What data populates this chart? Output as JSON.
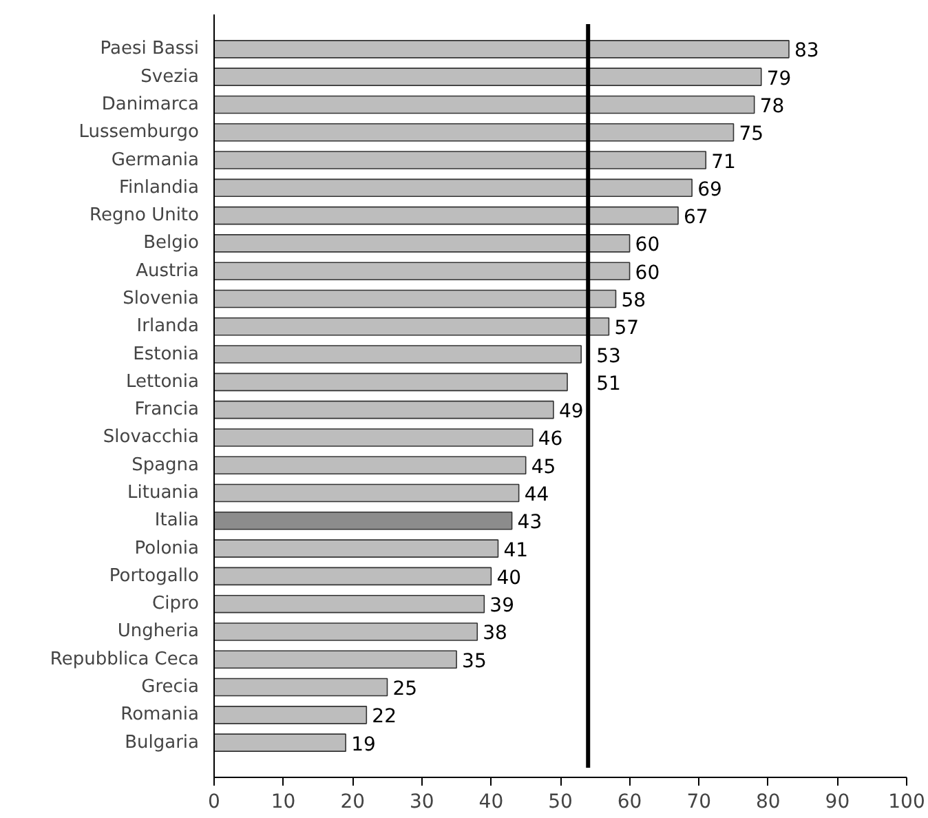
{
  "chart_data": {
    "type": "bar",
    "orientation": "horizontal",
    "categories": [
      "Paesi Bassi",
      "Svezia",
      "Danimarca",
      "Lussemburgo",
      "Germania",
      "Finlandia",
      "Regno Unito",
      "Belgio",
      "Austria",
      "Slovenia",
      "Irlanda",
      "Estonia",
      "Lettonia",
      "Francia",
      "Slovacchia",
      "Spagna",
      "Lituania",
      "Italia",
      "Polonia",
      "Portogallo",
      "Cipro",
      "Ungheria",
      "Repubblica Ceca",
      "Grecia",
      "Romania",
      "Bulgaria"
    ],
    "values": [
      83,
      79,
      78,
      75,
      71,
      69,
      67,
      60,
      60,
      58,
      57,
      53,
      51,
      49,
      46,
      45,
      44,
      43,
      41,
      40,
      39,
      38,
      35,
      25,
      22,
      19
    ],
    "colors": [
      "#bdbdbd",
      "#bdbdbd",
      "#bdbdbd",
      "#bdbdbd",
      "#bdbdbd",
      "#bdbdbd",
      "#bdbdbd",
      "#bdbdbd",
      "#bdbdbd",
      "#bdbdbd",
      "#bdbdbd",
      "#bdbdbd",
      "#bdbdbd",
      "#bdbdbd",
      "#bdbdbd",
      "#bdbdbd",
      "#bdbdbd",
      "#8c8c8c",
      "#bdbdbd",
      "#bdbdbd",
      "#bdbdbd",
      "#bdbdbd",
      "#bdbdbd",
      "#bdbdbd",
      "#bdbdbd",
      "#bdbdbd"
    ],
    "data_labels": true,
    "xlim": [
      0,
      100
    ],
    "xticks": [
      0,
      10,
      20,
      30,
      40,
      50,
      60,
      70,
      80,
      90,
      100
    ],
    "ref_lines": [
      {
        "axis": "x",
        "value": 54,
        "color": "#000000"
      }
    ],
    "grid": false
  }
}
